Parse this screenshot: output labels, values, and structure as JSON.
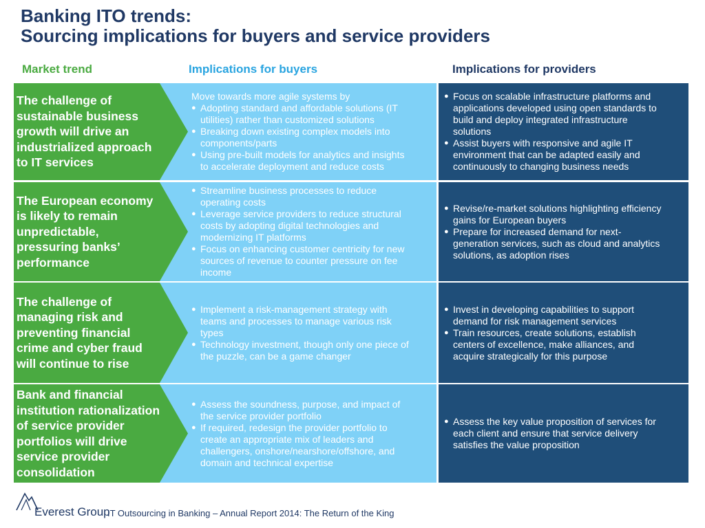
{
  "title": {
    "line1": "Banking ITO trends:",
    "line2": "Sourcing implications for buyers and service providers"
  },
  "columns": {
    "trend": "Market trend",
    "buyers": "Implications for buyers",
    "providers": "Implications for providers"
  },
  "colors": {
    "trend_green": "#4aaa41",
    "buyers_blue": "#7fd1f7",
    "providers_navy": "#1f4e79",
    "title_navy": "#1f3864"
  },
  "rows": [
    {
      "trend": "The challenge of\nsustainable business\ngrowth will drive an\nindustrialized approach\nto IT services",
      "buyers_intro": "Move towards more agile systems by",
      "buyers": [
        "Adopting standard and affordable solutions (IT\nutilities) rather than customized solutions",
        "Breaking down existing complex models into\ncomponents/parts",
        "Using pre-built models for analytics and insights\nto accelerate deployment and reduce costs"
      ],
      "providers": [
        "Focus on scalable infrastructure platforms and\napplications developed using open standards to\nbuild and deploy integrated infrastructure\nsolutions",
        "Assist buyers with responsive and agile IT\nenvironment that can be adapted easily and\ncontinuously to changing business needs"
      ]
    },
    {
      "trend": "The European economy\nis likely to remain\nunpredictable,\npressuring banks’\nperformance",
      "buyers_intro": "",
      "buyers": [
        "Streamline business processes to reduce\noperating costs",
        "Leverage service providers to reduce structural\ncosts by adopting digital technologies and\nmodernizing IT platforms",
        "Focus on enhancing customer centricity for new\nsources of revenue to counter pressure on fee\nincome"
      ],
      "providers": [
        "Revise/re-market solutions highlighting efficiency\ngains for European buyers",
        "Prepare for increased demand for next-\ngeneration services, such as cloud and analytics\nsolutions, as adoption rises"
      ]
    },
    {
      "trend": "The challenge of\nmanaging risk and\npreventing financial\ncrime and cyber fraud\nwill continue to rise",
      "buyers_intro": "",
      "buyers": [
        "Implement a risk-management strategy with\nteams and processes to manage various risk\ntypes",
        "Technology investment, though only one piece of\nthe puzzle, can be a game changer"
      ],
      "providers": [
        "Invest in developing capabilities to support\ndemand for risk management services",
        "Train resources, create solutions, establish\ncenters of excellence, make alliances, and\nacquire strategically for this purpose"
      ]
    },
    {
      "trend": "Bank and financial\ninstitution rationalization\nof service provider\nportfolios will drive\nservice provider\nconsolidation",
      "buyers_intro": "",
      "buyers": [
        "Assess the soundness, purpose, and impact of\nthe service provider portfolio",
        "If required, redesign the provider portfolio to\ncreate an appropriate mix of leaders and\nchallengers, onshore/nearshore/offshore, and\ndomain and technical expertise"
      ],
      "providers": [
        "Assess the key value proposition of services for\neach client and ensure that service delivery\nsatisfies the value proposition"
      ]
    }
  ],
  "footer": {
    "brand": "Everest Group",
    "report": "IT Outsourcing in Banking – Annual Report 2014: The Return of the King"
  }
}
